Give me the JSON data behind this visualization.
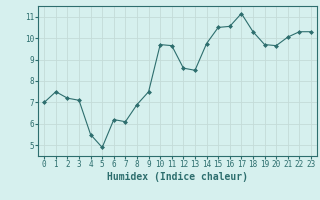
{
  "x": [
    0,
    1,
    2,
    3,
    4,
    5,
    6,
    7,
    8,
    9,
    10,
    11,
    12,
    13,
    14,
    15,
    16,
    17,
    18,
    19,
    20,
    21,
    22,
    23
  ],
  "y": [
    7.0,
    7.5,
    7.2,
    7.1,
    5.5,
    4.9,
    6.2,
    6.1,
    6.9,
    7.5,
    9.7,
    9.65,
    8.6,
    8.5,
    9.75,
    10.5,
    10.55,
    11.15,
    10.3,
    9.7,
    9.65,
    10.05,
    10.3,
    10.3
  ],
  "line_color": "#2d6e6e",
  "marker": "D",
  "marker_size": 2,
  "bg_color": "#d6f0ee",
  "grid_color": "#c4dbd8",
  "xlabel": "Humidex (Indice chaleur)",
  "xlim": [
    -0.5,
    23.5
  ],
  "ylim": [
    4.5,
    11.5
  ],
  "yticks": [
    5,
    6,
    7,
    8,
    9,
    10,
    11
  ],
  "xticks": [
    0,
    1,
    2,
    3,
    4,
    5,
    6,
    7,
    8,
    9,
    10,
    11,
    12,
    13,
    14,
    15,
    16,
    17,
    18,
    19,
    20,
    21,
    22,
    23
  ],
  "tick_fontsize": 5.5,
  "label_fontsize": 7
}
